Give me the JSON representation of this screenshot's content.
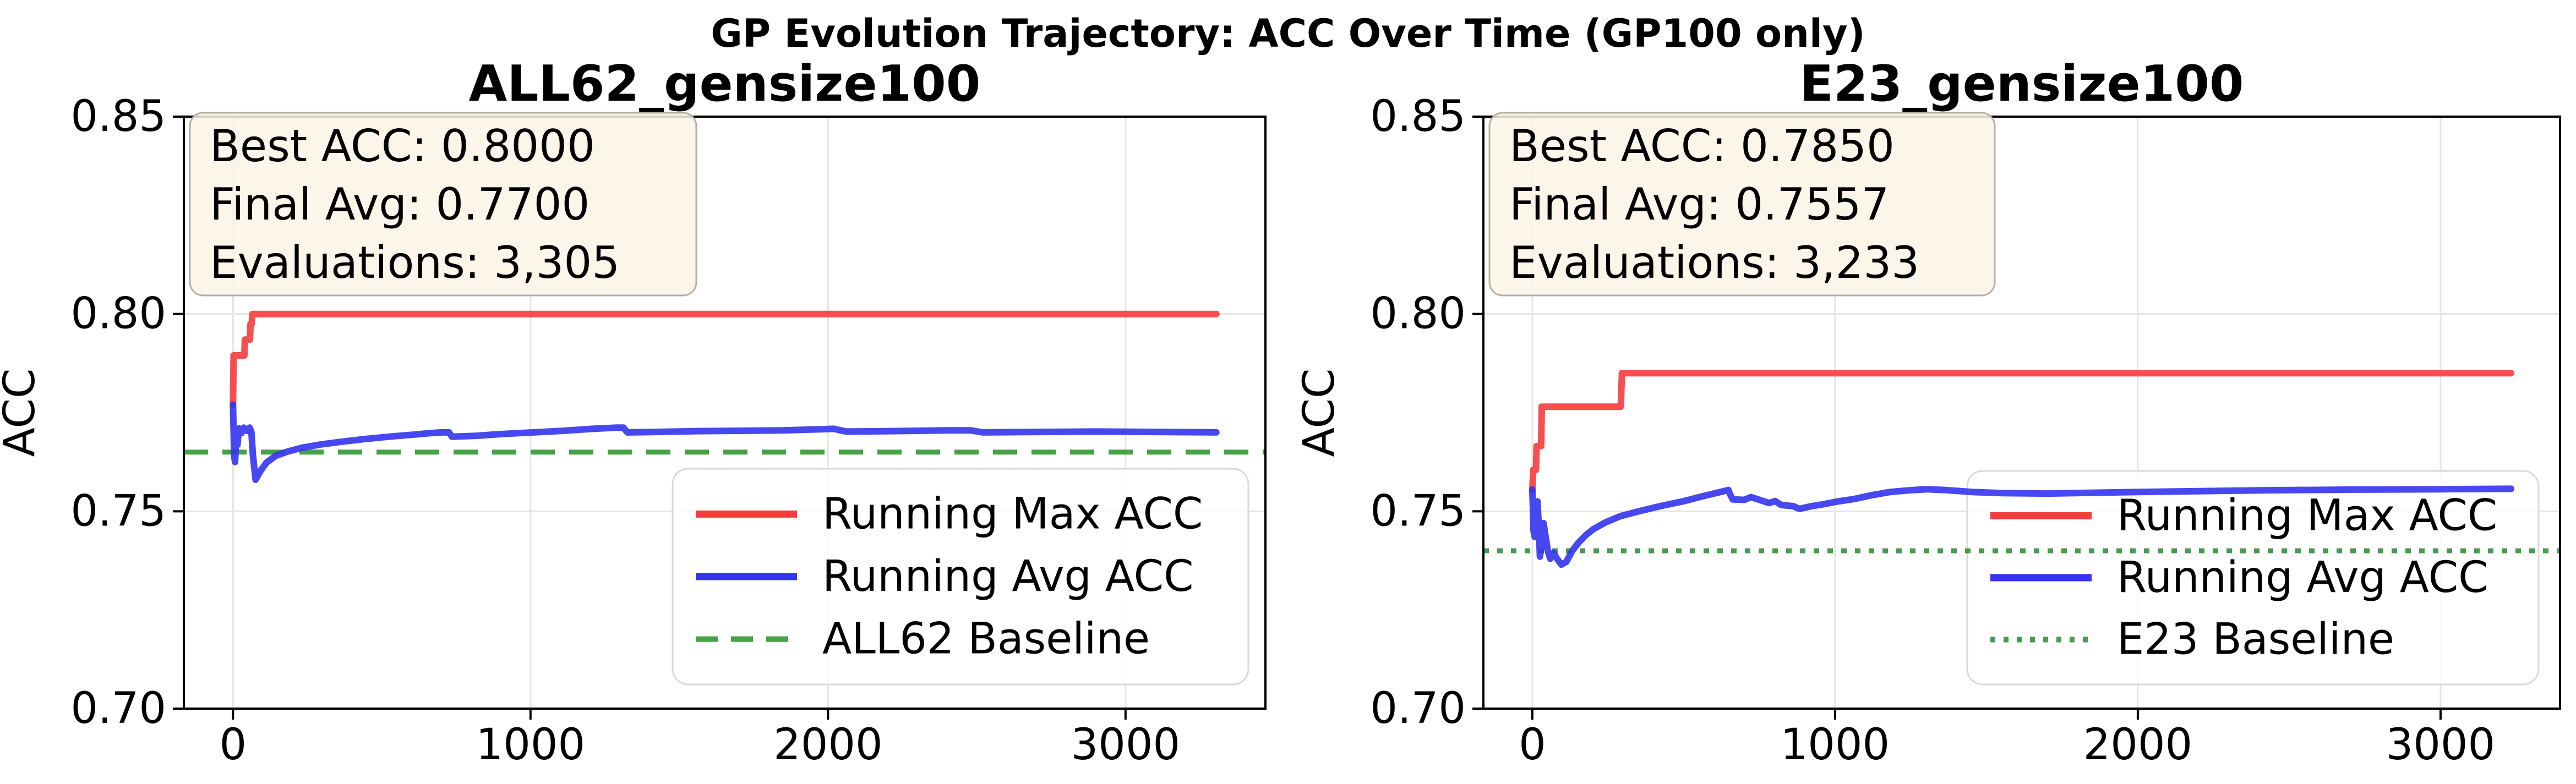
{
  "figure": {
    "suptitle": "GP Evolution Trajectory: ACC Over Time (GP100 only)",
    "background": "#ffffff"
  },
  "colors": {
    "running_max": "#f53c3c",
    "running_avg": "#3434ef",
    "baseline_dashed": "#46a246",
    "baseline_dotted": "#479a52",
    "grid": "#e5e5e5",
    "spine": "#000000",
    "tick": "#000000",
    "text": "#000000",
    "legend_bg": "rgba(255,255,255,0.8)",
    "legend_border": "#d9d9d9",
    "annotation_bg": "rgba(250,243,230,0.86)",
    "annotation_border": "#b6b0a2"
  },
  "chart_data": [
    {
      "type": "line",
      "title": "ALL62_gensize100",
      "xlabel": "",
      "ylabel": "ACC",
      "xlim": [
        -165.25,
        3470.25
      ],
      "ylim": [
        0.7,
        0.85
      ],
      "grid": true,
      "legend_position": "lower right",
      "xticks": [
        {
          "v": 0,
          "label": "0"
        },
        {
          "v": 1000,
          "label": "1000"
        },
        {
          "v": 2000,
          "label": "2000"
        },
        {
          "v": 3000,
          "label": "3000"
        }
      ],
      "yticks": [
        {
          "v": 0.7,
          "label": "0.70"
        },
        {
          "v": 0.75,
          "label": "0.75"
        },
        {
          "v": 0.8,
          "label": "0.80"
        },
        {
          "v": 0.85,
          "label": "0.85"
        }
      ],
      "stats": {
        "best_acc": 0.8,
        "final_avg": 0.77,
        "evaluations": 3305
      },
      "annotation": {
        "lines": [
          "Best ACC: 0.8000",
          "Final Avg: 0.7700",
          "Evaluations: 3,305"
        ]
      },
      "baseline": {
        "label": "ALL62 Baseline",
        "value": 0.765,
        "style": "dashed",
        "color": "#46a246"
      },
      "legend": [
        {
          "label": "Running Max ACC",
          "style": "solid",
          "color": "#f53c3c"
        },
        {
          "label": "Running Avg ACC",
          "style": "solid",
          "color": "#3434ef"
        },
        {
          "label": "ALL62 Baseline",
          "style": "dashed",
          "color": "#46a246"
        }
      ],
      "series": [
        {
          "name": "Running Max ACC",
          "color": "#f53c3c",
          "style": "solid",
          "points": [
            [
              0,
              0.777
            ],
            [
              2,
              0.7895
            ],
            [
              38,
              0.7895
            ],
            [
              40,
              0.7935
            ],
            [
              57,
              0.7935
            ],
            [
              59,
              0.7975
            ],
            [
              63,
              0.7975
            ],
            [
              65,
              0.8
            ],
            [
              3305,
              0.8
            ]
          ]
        },
        {
          "name": "Running Avg ACC",
          "color": "#3434ef",
          "style": "solid",
          "points": [
            [
              0,
              0.777
            ],
            [
              4,
              0.7638
            ],
            [
              7,
              0.7625
            ],
            [
              11,
              0.7698
            ],
            [
              15,
              0.7668
            ],
            [
              20,
              0.771
            ],
            [
              28,
              0.7698
            ],
            [
              36,
              0.7712
            ],
            [
              46,
              0.7704
            ],
            [
              56,
              0.7712
            ],
            [
              62,
              0.77
            ],
            [
              67,
              0.7642
            ],
            [
              76,
              0.758
            ],
            [
              92,
              0.7602
            ],
            [
              112,
              0.7623
            ],
            [
              142,
              0.764
            ],
            [
              182,
              0.7651
            ],
            [
              232,
              0.7661
            ],
            [
              292,
              0.7669
            ],
            [
              362,
              0.7676
            ],
            [
              442,
              0.7683
            ],
            [
              522,
              0.7689
            ],
            [
              602,
              0.7694
            ],
            [
              662,
              0.7698
            ],
            [
              700,
              0.77
            ],
            [
              726,
              0.77
            ],
            [
              736,
              0.7689
            ],
            [
              810,
              0.7691
            ],
            [
              910,
              0.7696
            ],
            [
              1010,
              0.77
            ],
            [
              1110,
              0.7704
            ],
            [
              1210,
              0.7709
            ],
            [
              1290,
              0.7712
            ],
            [
              1312,
              0.7712
            ],
            [
              1326,
              0.77
            ],
            [
              1420,
              0.7701
            ],
            [
              1550,
              0.7703
            ],
            [
              1700,
              0.7704
            ],
            [
              1850,
              0.7705
            ],
            [
              1980,
              0.7708
            ],
            [
              2020,
              0.7709
            ],
            [
              2060,
              0.7702
            ],
            [
              2200,
              0.7703
            ],
            [
              2400,
              0.7705
            ],
            [
              2480,
              0.7705
            ],
            [
              2520,
              0.77
            ],
            [
              2700,
              0.7701
            ],
            [
              2900,
              0.7702
            ],
            [
              3100,
              0.7701
            ],
            [
              3305,
              0.77
            ]
          ]
        }
      ]
    },
    {
      "type": "line",
      "title": "E23_gensize100",
      "xlabel": "",
      "ylabel": "ACC",
      "xlim": [
        -161.65,
        3394.65
      ],
      "ylim": [
        0.7,
        0.85
      ],
      "grid": true,
      "legend_position": "lower right",
      "xticks": [
        {
          "v": 0,
          "label": "0"
        },
        {
          "v": 1000,
          "label": "1000"
        },
        {
          "v": 2000,
          "label": "2000"
        },
        {
          "v": 3000,
          "label": "3000"
        }
      ],
      "yticks": [
        {
          "v": 0.7,
          "label": "0.70"
        },
        {
          "v": 0.75,
          "label": "0.75"
        },
        {
          "v": 0.8,
          "label": "0.80"
        },
        {
          "v": 0.85,
          "label": "0.85"
        }
      ],
      "stats": {
        "best_acc": 0.785,
        "final_avg": 0.7557,
        "evaluations": 3233
      },
      "annotation": {
        "lines": [
          "Best ACC: 0.7850",
          "Final Avg: 0.7557",
          "Evaluations: 3,233"
        ]
      },
      "baseline": {
        "label": "E23 Baseline",
        "value": 0.74,
        "style": "dotted",
        "color": "#479a52"
      },
      "legend": [
        {
          "label": "Running Max ACC",
          "style": "solid",
          "color": "#f53c3c"
        },
        {
          "label": "Running Avg ACC",
          "style": "solid",
          "color": "#3434ef"
        },
        {
          "label": "E23 Baseline",
          "style": "dotted",
          "color": "#479a52"
        }
      ],
      "series": [
        {
          "name": "Running Max ACC",
          "color": "#f53c3c",
          "style": "solid",
          "points": [
            [
              0,
              0.7555
            ],
            [
              3,
              0.7605
            ],
            [
              12,
              0.7605
            ],
            [
              14,
              0.7665
            ],
            [
              29,
              0.7665
            ],
            [
              31,
              0.7765
            ],
            [
              292,
              0.7765
            ],
            [
              296,
              0.785
            ],
            [
              3233,
              0.785
            ]
          ]
        },
        {
          "name": "Running Avg ACC",
          "color": "#3434ef",
          "style": "solid",
          "points": [
            [
              0,
              0.7555
            ],
            [
              4,
              0.745
            ],
            [
              8,
              0.7435
            ],
            [
              13,
              0.75
            ],
            [
              17,
              0.7525
            ],
            [
              21,
              0.7465
            ],
            [
              25,
              0.7385
            ],
            [
              31,
              0.742
            ],
            [
              37,
              0.747
            ],
            [
              43,
              0.744
            ],
            [
              51,
              0.74
            ],
            [
              59,
              0.738
            ],
            [
              70,
              0.7395
            ],
            [
              81,
              0.738
            ],
            [
              96,
              0.7365
            ],
            [
              112,
              0.7372
            ],
            [
              132,
              0.74
            ],
            [
              152,
              0.742
            ],
            [
              177,
              0.744
            ],
            [
              202,
              0.7455
            ],
            [
              242,
              0.7472
            ],
            [
              292,
              0.7488
            ],
            [
              352,
              0.75
            ],
            [
              422,
              0.7513
            ],
            [
              502,
              0.7526
            ],
            [
              562,
              0.7538
            ],
            [
              622,
              0.7549
            ],
            [
              648,
              0.7554
            ],
            [
              652,
              0.7545
            ],
            [
              662,
              0.753
            ],
            [
              700,
              0.7529
            ],
            [
              722,
              0.7536
            ],
            [
              742,
              0.7531
            ],
            [
              782,
              0.7521
            ],
            [
              802,
              0.7526
            ],
            [
              822,
              0.7516
            ],
            [
              862,
              0.7513
            ],
            [
              882,
              0.7506
            ],
            [
              922,
              0.7513
            ],
            [
              962,
              0.7518
            ],
            [
              1002,
              0.7524
            ],
            [
              1062,
              0.7531
            ],
            [
              1122,
              0.7541
            ],
            [
              1182,
              0.7549
            ],
            [
              1242,
              0.7553
            ],
            [
              1302,
              0.7556
            ],
            [
              1362,
              0.7554
            ],
            [
              1452,
              0.7549
            ],
            [
              1552,
              0.7546
            ],
            [
              1702,
              0.7545
            ],
            [
              1852,
              0.7547
            ],
            [
              2002,
              0.7549
            ],
            [
              2202,
              0.7551
            ],
            [
              2402,
              0.7553
            ],
            [
              2702,
              0.7555
            ],
            [
              3002,
              0.7556
            ],
            [
              3233,
              0.7557
            ]
          ]
        }
      ]
    }
  ]
}
